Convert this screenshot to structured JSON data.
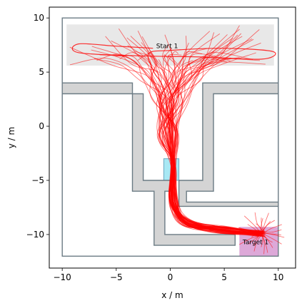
{
  "chart_data": {
    "type": "line",
    "title": "",
    "xlabel": "x / m",
    "ylabel": "y / m",
    "xlim": [
      -11.2,
      11.6
    ],
    "ylim": [
      -13.1,
      11.0
    ],
    "xticks": [
      -10,
      -5,
      0,
      5,
      10
    ],
    "yticks": [
      -10,
      -5,
      0,
      5,
      10
    ],
    "xtick_labels": [
      "−10",
      "−5",
      "0",
      "5",
      "10"
    ],
    "ytick_labels": [
      "−10",
      "−5",
      "0",
      "5",
      "10"
    ],
    "grid": false,
    "boundary": [
      [
        -10,
        -12
      ],
      [
        10,
        -12
      ],
      [
        10,
        10
      ],
      [
        -10,
        10
      ]
    ],
    "walls": [
      [
        [
          -10,
          4
        ],
        [
          -3.5,
          4
        ],
        [
          -3.5,
          -6
        ],
        [
          -1.5,
          -6
        ],
        [
          -1.5,
          -11
        ],
        [
          6,
          -11
        ],
        [
          6,
          -10
        ],
        [
          -0.5,
          -10
        ],
        [
          -0.5,
          -6
        ],
        [
          0,
          -6
        ],
        [
          0,
          -5
        ],
        [
          -2.5,
          -5
        ],
        [
          -2.5,
          3
        ],
        [
          -10,
          3
        ]
      ],
      [
        [
          3,
          4
        ],
        [
          10,
          4
        ],
        [
          10,
          3
        ],
        [
          4,
          3
        ],
        [
          4,
          -6
        ],
        [
          1.5,
          -6
        ],
        [
          1.5,
          -7
        ],
        [
          10,
          -7
        ],
        [
          10,
          -7.4
        ],
        [
          0.8,
          -7.4
        ],
        [
          0.8,
          -5
        ],
        [
          3,
          -5
        ]
      ]
    ],
    "start_region": {
      "label": "Start 1",
      "x": [
        -9.6,
        9.6
      ],
      "y": [
        5.6,
        9.4
      ],
      "color": "#e8e8e8"
    },
    "target_region": {
      "label": "Target 1",
      "x": [
        6.4,
        10.0
      ],
      "y": [
        -12.0,
        -9.3
      ],
      "color": "#dda8d8"
    },
    "gate_region": {
      "x": [
        -0.6,
        0.8
      ],
      "y": [
        -5.0,
        -3.0
      ],
      "color": "#a8e8f4"
    },
    "trajectory_color": "#ff0000",
    "trajectory_count": 60,
    "trajectory_waypoints": [
      [
        0.3,
        -3.5
      ],
      [
        0.3,
        -7.0
      ],
      [
        1.5,
        -8.9
      ],
      [
        5.0,
        -9.6
      ],
      [
        8.5,
        -9.9
      ]
    ],
    "loop_trajectory": [
      [
        -1.6,
        7.2
      ],
      [
        -5,
        7.4
      ],
      [
        -8.5,
        7.6
      ],
      [
        -8.5,
        6.8
      ],
      [
        -3,
        6.5
      ],
      [
        3,
        6.4
      ],
      [
        8.5,
        6.2
      ],
      [
        9.5,
        6.9
      ],
      [
        5,
        7.2
      ],
      [
        0,
        7.0
      ],
      [
        -2,
        6.7
      ],
      [
        -1.5,
        5.0
      ],
      [
        -0.5,
        3.0
      ]
    ],
    "tentacle_count": 26
  }
}
